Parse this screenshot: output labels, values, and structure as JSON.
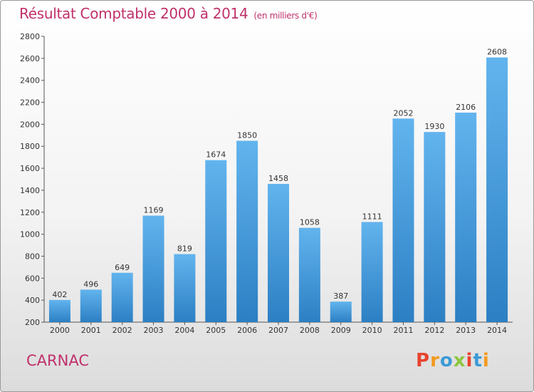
{
  "title": "Résultat Comptable 2000 à 2014",
  "subtitle": "(en milliers d'€)",
  "city": "CARNAC",
  "brand": {
    "letters": [
      "P",
      "r",
      "o",
      "x",
      "i",
      "t",
      "i"
    ],
    "colors": [
      "#e8432e",
      "#f39a1d",
      "#3c9ad6",
      "#8cc63f",
      "#e8432e",
      "#3c9ad6",
      "#f39a1d"
    ]
  },
  "colors": {
    "title": "#c0316b",
    "bar_light": "#62b4ee",
    "bar_dark": "#2c7fc3",
    "axis": "#555555"
  },
  "chart_data": {
    "type": "bar",
    "title": "Résultat Comptable 2000 à 2014",
    "subtitle": "(en milliers d'€)",
    "categories": [
      "2000",
      "2001",
      "2002",
      "2003",
      "2004",
      "2005",
      "2006",
      "2007",
      "2008",
      "2009",
      "2010",
      "2011",
      "2012",
      "2013",
      "2014"
    ],
    "values": [
      402,
      496,
      649,
      1169,
      819,
      1674,
      1850,
      1458,
      1058,
      387,
      1111,
      2052,
      1930,
      2106,
      2608
    ],
    "ylim": [
      200,
      2800
    ],
    "yticks": [
      200,
      400,
      600,
      800,
      1000,
      1200,
      1400,
      1600,
      1800,
      2000,
      2200,
      2400,
      2600,
      2800
    ],
    "grid": false,
    "data_labels": true
  }
}
